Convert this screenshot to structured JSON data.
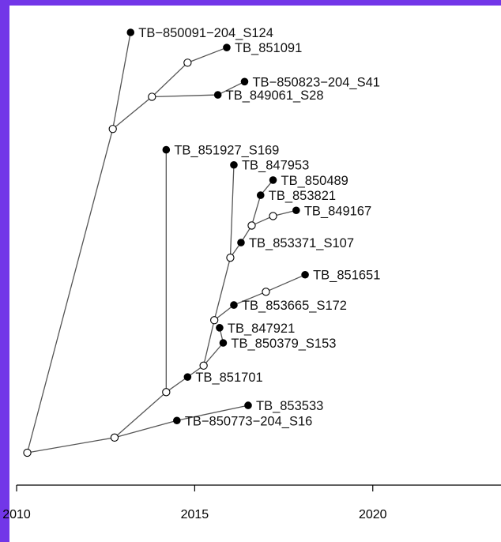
{
  "colors": {
    "frame": "#7236e8",
    "background": "#ffffff",
    "edge": "#555555",
    "node": "#000000"
  },
  "chart_data": {
    "type": "phylogenetic-tree",
    "x_axis": {
      "range": [
        2009.8,
        2023.6
      ],
      "ticks": [
        2010,
        2015,
        2020
      ],
      "tick_labels": [
        "2010",
        "2015",
        "2020"
      ]
    },
    "nodes": [
      {
        "id": "root",
        "kind": "internal",
        "x": 2010.3,
        "row": 0
      },
      {
        "id": "n1",
        "kind": "internal",
        "x": 2012.7,
        "row": 17.1
      },
      {
        "id": "n2",
        "kind": "internal",
        "x": 2013.8,
        "row": 18.8
      },
      {
        "id": "n3",
        "kind": "internal",
        "x": 2014.8,
        "row": 20.6
      },
      {
        "id": "i1",
        "kind": "internal",
        "x": 2012.75,
        "row": 0.8
      },
      {
        "id": "i2",
        "kind": "internal",
        "x": 2014.2,
        "row": 3.2
      },
      {
        "id": "i3",
        "kind": "internal",
        "x": 2015.25,
        "row": 4.6
      },
      {
        "id": "i4",
        "kind": "internal",
        "x": 2015.55,
        "row": 7.0
      },
      {
        "id": "i5",
        "kind": "internal",
        "x": 2017.0,
        "row": 8.5
      },
      {
        "id": "i6",
        "kind": "internal",
        "x": 2016.0,
        "row": 10.3
      },
      {
        "id": "i7",
        "kind": "internal",
        "x": 2016.6,
        "row": 12.0
      },
      {
        "id": "i8",
        "kind": "internal",
        "x": 2017.2,
        "row": 12.5
      },
      {
        "id": "t1",
        "kind": "tip",
        "label": "TB−850091−204_S124",
        "x": 2013.2,
        "row": 22.2
      },
      {
        "id": "t2",
        "kind": "tip",
        "label": "TB_851091",
        "x": 2015.9,
        "row": 21.4
      },
      {
        "id": "t3",
        "kind": "tip",
        "label": "TB−850823−204_S41",
        "x": 2016.4,
        "row": 19.6
      },
      {
        "id": "t4",
        "kind": "tip",
        "label": "TB_849061_S28",
        "x": 2015.65,
        "row": 18.9
      },
      {
        "id": "t5",
        "kind": "tip",
        "label": "TB_851927_S169",
        "x": 2014.2,
        "row": 16.0
      },
      {
        "id": "t6",
        "kind": "tip",
        "label": "TB_847953",
        "x": 2016.1,
        "row": 15.2
      },
      {
        "id": "t7",
        "kind": "tip",
        "label": "TB_850489",
        "x": 2017.2,
        "row": 14.4
      },
      {
        "id": "t8",
        "kind": "tip",
        "label": "TB_853821",
        "x": 2016.85,
        "row": 13.6
      },
      {
        "id": "t9",
        "kind": "tip",
        "label": "TB_849167",
        "x": 2017.85,
        "row": 12.8
      },
      {
        "id": "t10",
        "kind": "tip",
        "label": "TB_853371_S107",
        "x": 2016.3,
        "row": 11.1
      },
      {
        "id": "t11",
        "kind": "tip",
        "label": "TB_851651",
        "x": 2018.1,
        "row": 9.4
      },
      {
        "id": "t12",
        "kind": "tip",
        "label": "TB_853665_S172",
        "x": 2016.1,
        "row": 7.8
      },
      {
        "id": "t13",
        "kind": "tip",
        "label": "TB_847921",
        "x": 2015.7,
        "row": 6.6
      },
      {
        "id": "t14",
        "kind": "tip",
        "label": "TB_850379_S153",
        "x": 2015.8,
        "row": 5.8
      },
      {
        "id": "t15",
        "kind": "tip",
        "label": "TB_851701",
        "x": 2014.8,
        "row": 4.0
      },
      {
        "id": "t16",
        "kind": "tip",
        "label": "TB_853533",
        "x": 2016.5,
        "row": 2.5
      },
      {
        "id": "t17",
        "kind": "tip",
        "label": "TB−850773−204_S16",
        "x": 2014.5,
        "row": 1.7
      }
    ],
    "edges": [
      [
        "root",
        "n1"
      ],
      [
        "n1",
        "t1"
      ],
      [
        "n1",
        "n2"
      ],
      [
        "n2",
        "n3"
      ],
      [
        "n3",
        "t2"
      ],
      [
        "n2",
        "t4"
      ],
      [
        "t4",
        "t3"
      ],
      [
        "root",
        "i1"
      ],
      [
        "i1",
        "t17"
      ],
      [
        "t17",
        "t16"
      ],
      [
        "i1",
        "i2"
      ],
      [
        "i2",
        "t5"
      ],
      [
        "i2",
        "t15"
      ],
      [
        "t15",
        "i3"
      ],
      [
        "i3",
        "t14"
      ],
      [
        "t14",
        "t13"
      ],
      [
        "i3",
        "i4"
      ],
      [
        "i4",
        "t12"
      ],
      [
        "t12",
        "i5"
      ],
      [
        "i5",
        "t11"
      ],
      [
        "i4",
        "i6"
      ],
      [
        "i6",
        "t6"
      ],
      [
        "i6",
        "t10"
      ],
      [
        "t10",
        "i7"
      ],
      [
        "i7",
        "t8"
      ],
      [
        "t8",
        "t7"
      ],
      [
        "i7",
        "i8"
      ],
      [
        "i8",
        "t9"
      ]
    ]
  }
}
